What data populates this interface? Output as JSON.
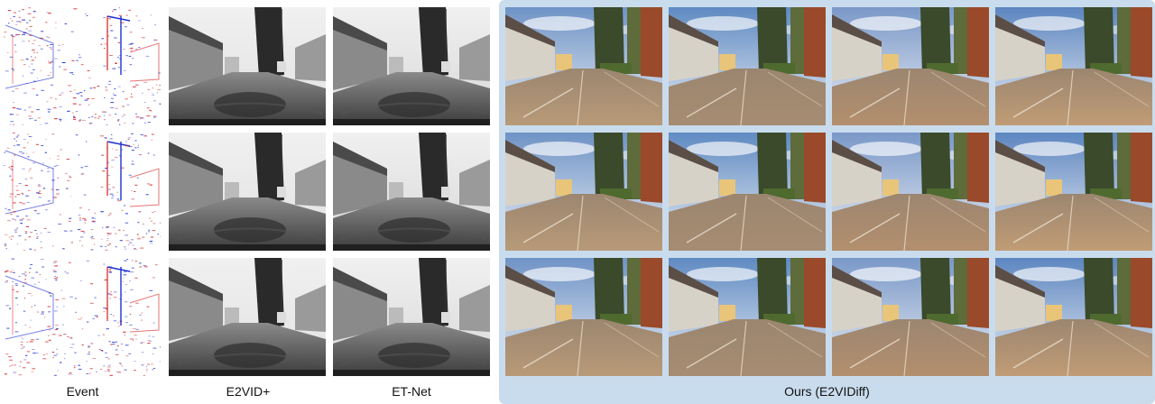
{
  "columns": [
    {
      "key": "event",
      "caption": "Event"
    },
    {
      "key": "e2vid",
      "caption": "E2VID+"
    },
    {
      "key": "etnet",
      "caption": "ET-Net"
    },
    {
      "key": "ours",
      "caption": "Ours (E2VIDiff)"
    }
  ],
  "rows": 3,
  "ours_samples_per_row": 4,
  "colors": {
    "ours_panel_background": "#c9dced",
    "event_positive": "#1d2fd0",
    "event_negative": "#d21c1c"
  },
  "tile_kinds": {
    "event": "event-polarity-image",
    "e2vid": "grayscale-reconstruction",
    "etnet": "grayscale-reconstruction",
    "ours": "color-reconstruction"
  }
}
